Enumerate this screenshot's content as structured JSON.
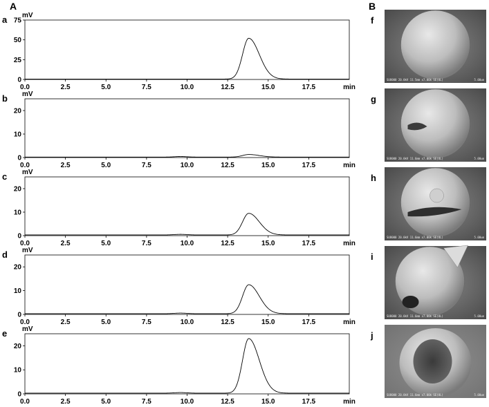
{
  "figure": {
    "panel_A_label": "A",
    "panel_B_label": "B"
  },
  "chart_data": [
    {
      "type": "line",
      "panel": "a",
      "ylabel": "mV",
      "xlabel": "min",
      "xlim": [
        0,
        20
      ],
      "ylim": [
        0,
        75
      ],
      "xticks": [
        "0.0",
        "2.5",
        "5.0",
        "7.5",
        "10.0",
        "12.5",
        "15.0",
        "17.5"
      ],
      "yticks": [
        "0",
        "25",
        "50",
        "75"
      ],
      "peak": {
        "x": 13.8,
        "y": 52
      },
      "baseline": 0.5
    },
    {
      "type": "line",
      "panel": "b",
      "ylabel": "mV",
      "xlabel": "min",
      "xlim": [
        0,
        20
      ],
      "ylim": [
        0,
        25
      ],
      "xticks": [
        "0.0",
        "2.5",
        "5.0",
        "7.5",
        "10.0",
        "12.5",
        "15.0",
        "17.5"
      ],
      "yticks": [
        "0",
        "10",
        "20"
      ],
      "peak": {
        "x": 13.8,
        "y": 1.3
      },
      "baseline": 0.2
    },
    {
      "type": "line",
      "panel": "c",
      "ylabel": "mV",
      "xlabel": "min",
      "xlim": [
        0,
        20
      ],
      "ylim": [
        0,
        25
      ],
      "xticks": [
        "0.0",
        "2.5",
        "5.0",
        "7.5",
        "10.0",
        "12.5",
        "15.0",
        "17.5"
      ],
      "yticks": [
        "0",
        "10",
        "20"
      ],
      "peak": {
        "x": 13.8,
        "y": 9.5
      },
      "baseline": 0.3
    },
    {
      "type": "line",
      "panel": "d",
      "ylabel": "mV",
      "xlabel": "min",
      "xlim": [
        0,
        20
      ],
      "ylim": [
        0,
        25
      ],
      "xticks": [
        "0.0",
        "2.5",
        "5.0",
        "7.5",
        "10.0",
        "12.5",
        "15.0",
        "17.5"
      ],
      "yticks": [
        "0",
        "10",
        "20"
      ],
      "peak": {
        "x": 13.8,
        "y": 12.5
      },
      "baseline": 0.3
    },
    {
      "type": "line",
      "panel": "e",
      "ylabel": "mV",
      "xlabel": "min",
      "xlim": [
        0,
        20
      ],
      "ylim": [
        0,
        25
      ],
      "xticks": [
        "0.0",
        "2.5",
        "5.0",
        "7.5",
        "10.0",
        "12.5",
        "15.0",
        "17.5"
      ],
      "yticks": [
        "0",
        "10",
        "20"
      ],
      "peak": {
        "x": 13.8,
        "y": 23
      },
      "baseline": 0.3
    }
  ],
  "sem_images": [
    {
      "label": "f",
      "caption": "SU8000 20.0kV 11.5mm x7.00k SE(UL)",
      "scale": "5.00um"
    },
    {
      "label": "g",
      "caption": "SU8000 20.0kV 11.6mm x7.00k SE(UL)",
      "scale": "5.00um"
    },
    {
      "label": "h",
      "caption": "SU8000 20.0kV 11.6mm x7.00k SE(UL)",
      "scale": "5.00um"
    },
    {
      "label": "i",
      "caption": "SU8000 20.0kV 11.6mm x7.00k SE(UL)",
      "scale": "5.00um"
    },
    {
      "label": "j",
      "caption": "SU8000 20.0kV 11.6mm x7.00k SE(UL)",
      "scale": "5.00um"
    }
  ]
}
